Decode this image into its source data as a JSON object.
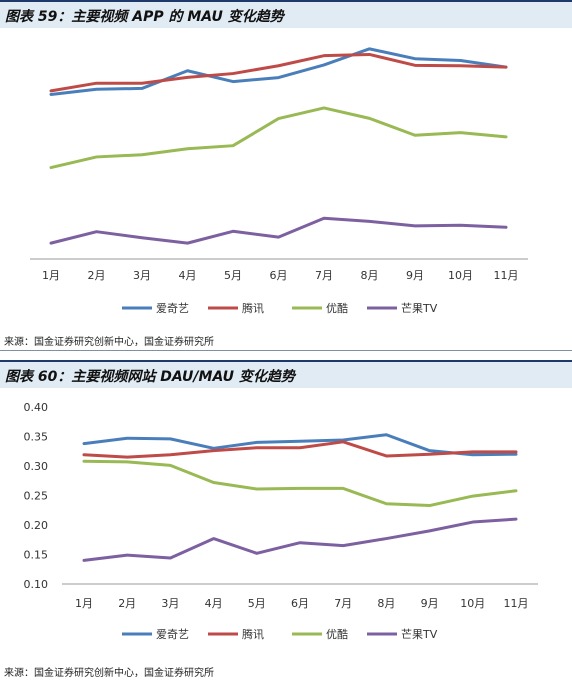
{
  "colors": {
    "aiqiyi": "#4a7ebb",
    "tengxun": "#be4b48",
    "youku": "#98b954",
    "mangguo": "#7d60a0"
  },
  "chart1": {
    "title": "图表 59：主要视频 APP 的 MAU 变化趋势",
    "source": "来源：国金证券研究创新中心，国金证券研究所"
  },
  "chart2": {
    "title": "图表 60：主要视频网站 DAU/MAU 变化趋势",
    "source": "来源：国金证券研究创新中心，国金证券研究所"
  },
  "chart_data": [
    {
      "type": "line",
      "title": "图表 59：主要视频 APP 的 MAU 变化趋势",
      "categories": [
        "1月",
        "2月",
        "3月",
        "4月",
        "5月",
        "6月",
        "7月",
        "8月",
        "9月",
        "10月",
        "11月"
      ],
      "y_axis_labels_shown": false,
      "grid": false,
      "legend_position": "bottom",
      "series": [
        {
          "name": "爱奇艺",
          "color": "#4a7ebb",
          "values": [
            0.819,
            0.845,
            0.849,
            0.937,
            0.883,
            0.903,
            0.966,
            1.046,
            0.997,
            0.988,
            0.955
          ]
        },
        {
          "name": "腾讯",
          "color": "#be4b48",
          "values": [
            0.837,
            0.875,
            0.875,
            0.904,
            0.923,
            0.962,
            1.012,
            1.018,
            0.964,
            0.962,
            0.955
          ]
        },
        {
          "name": "优酷",
          "color": "#98b954",
          "values": [
            0.455,
            0.508,
            0.519,
            0.549,
            0.564,
            0.699,
            0.752,
            0.7,
            0.616,
            0.629,
            0.608
          ]
        },
        {
          "name": "芒果TV",
          "color": "#7d60a0",
          "values": [
            0.079,
            0.136,
            0.106,
            0.079,
            0.138,
            0.109,
            0.203,
            0.187,
            0.165,
            0.168,
            0.158
          ]
        }
      ]
    },
    {
      "type": "line",
      "title": "图表 60：主要视频网站 DAU/MAU 变化趋势",
      "categories": [
        "1月",
        "2月",
        "3月",
        "4月",
        "5月",
        "6月",
        "7月",
        "8月",
        "9月",
        "10月",
        "11月"
      ],
      "ylim": [
        0.1,
        0.4
      ],
      "yticks": [
        "0.10",
        "0.15",
        "0.20",
        "0.25",
        "0.30",
        "0.35",
        "0.40"
      ],
      "grid": false,
      "legend_position": "bottom",
      "series": [
        {
          "name": "爱奇艺",
          "color": "#4a7ebb",
          "values": [
            0.338,
            0.347,
            0.346,
            0.33,
            0.34,
            0.342,
            0.344,
            0.353,
            0.326,
            0.319,
            0.32
          ]
        },
        {
          "name": "腾讯",
          "color": "#be4b48",
          "values": [
            0.319,
            0.315,
            0.319,
            0.326,
            0.331,
            0.331,
            0.341,
            0.317,
            0.32,
            0.324,
            0.324
          ]
        },
        {
          "name": "优酷",
          "color": "#98b954",
          "values": [
            0.308,
            0.307,
            0.301,
            0.272,
            0.261,
            0.262,
            0.262,
            0.236,
            0.233,
            0.249,
            0.258
          ]
        },
        {
          "name": "芒果TV",
          "color": "#7d60a0",
          "values": [
            0.14,
            0.149,
            0.144,
            0.177,
            0.152,
            0.17,
            0.165,
            0.177,
            0.19,
            0.205,
            0.21
          ]
        }
      ]
    }
  ]
}
